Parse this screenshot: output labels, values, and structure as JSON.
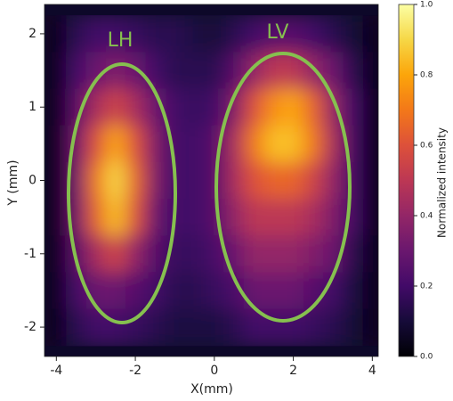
{
  "chart_data": {
    "type": "heatmap",
    "xlabel": "X(mm)",
    "ylabel": "Y (mm)",
    "colorbar_label": "Normalized intensity",
    "colormap": "inferno",
    "annotations": [
      "LH",
      "LV"
    ],
    "xlim": [
      -4.3,
      4.15
    ],
    "ylim": [
      -2.4,
      2.4
    ],
    "zlim": [
      0,
      1
    ],
    "xticks": [
      -4,
      -2,
      0,
      2,
      4
    ],
    "yticks": [
      -2,
      -1,
      0,
      1,
      2
    ],
    "zticks": [
      {
        "value": 0,
        "label": "0.0"
      },
      0.2,
      0.4,
      0.6,
      0.8,
      {
        "value": 1,
        "label": "1.0"
      }
    ],
    "x": [
      -4,
      -3.5,
      -3,
      -2.5,
      -2,
      -1.5,
      -1,
      -0.5,
      0,
      0.5,
      1,
      1.5,
      2,
      2.5,
      3,
      3.5,
      4
    ],
    "y": [
      2,
      1.5,
      1,
      0.5,
      0,
      -0.5,
      -1,
      -1.5,
      -2
    ],
    "z": [
      [
        0.05,
        0.15,
        0.2,
        0.2,
        0.18,
        0.15,
        0.15,
        0.12,
        0.1,
        0.15,
        0.2,
        0.25,
        0.25,
        0.2,
        0.15,
        0.1,
        0.05
      ],
      [
        0.05,
        0.2,
        0.3,
        0.35,
        0.3,
        0.2,
        0.15,
        0.15,
        0.15,
        0.25,
        0.4,
        0.5,
        0.5,
        0.4,
        0.3,
        0.15,
        0.05
      ],
      [
        0.05,
        0.25,
        0.45,
        0.55,
        0.45,
        0.3,
        0.2,
        0.18,
        0.2,
        0.35,
        0.6,
        0.75,
        0.8,
        0.65,
        0.4,
        0.2,
        0.05
      ],
      [
        0.05,
        0.3,
        0.6,
        0.8,
        0.6,
        0.35,
        0.2,
        0.2,
        0.25,
        0.45,
        0.7,
        0.85,
        0.85,
        0.7,
        0.45,
        0.2,
        0.05
      ],
      [
        0.05,
        0.3,
        0.7,
        0.9,
        0.65,
        0.35,
        0.2,
        0.2,
        0.25,
        0.45,
        0.6,
        0.65,
        0.65,
        0.55,
        0.4,
        0.2,
        0.05
      ],
      [
        0.05,
        0.3,
        0.65,
        0.85,
        0.6,
        0.3,
        0.2,
        0.2,
        0.25,
        0.4,
        0.5,
        0.5,
        0.5,
        0.45,
        0.35,
        0.2,
        0.05
      ],
      [
        0.05,
        0.25,
        0.45,
        0.55,
        0.4,
        0.25,
        0.18,
        0.18,
        0.22,
        0.3,
        0.4,
        0.4,
        0.4,
        0.35,
        0.3,
        0.15,
        0.05
      ],
      [
        0.05,
        0.2,
        0.3,
        0.3,
        0.25,
        0.2,
        0.15,
        0.15,
        0.18,
        0.22,
        0.3,
        0.3,
        0.3,
        0.25,
        0.2,
        0.12,
        0.05
      ],
      [
        0.05,
        0.15,
        0.2,
        0.2,
        0.18,
        0.15,
        0.12,
        0.12,
        0.12,
        0.15,
        0.2,
        0.2,
        0.2,
        0.18,
        0.15,
        0.1,
        0.05
      ]
    ]
  }
}
